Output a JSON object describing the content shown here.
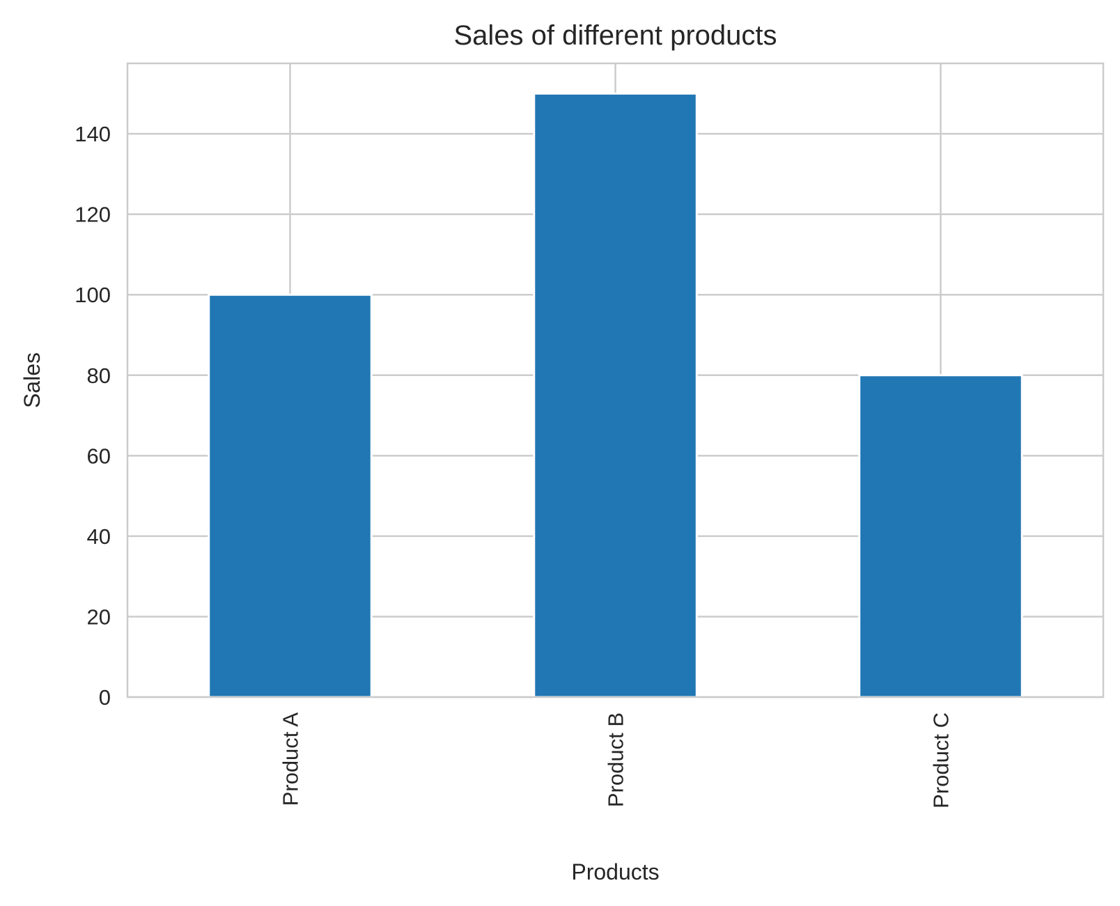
{
  "chart_data": {
    "type": "bar",
    "title": "Sales of different products",
    "xlabel": "Products",
    "ylabel": "Sales",
    "categories": [
      "Product A",
      "Product B",
      "Product C"
    ],
    "values": [
      100,
      150,
      80
    ],
    "ylim": [
      0,
      157.5
    ],
    "yticks": [
      0,
      20,
      40,
      60,
      80,
      100,
      120,
      140
    ],
    "grid": true,
    "legend": "none",
    "colors": {
      "bar": "#2077b4",
      "grid": "#cccccc",
      "spine": "#cccccc",
      "text": "#262626",
      "background": "#ffffff"
    }
  }
}
